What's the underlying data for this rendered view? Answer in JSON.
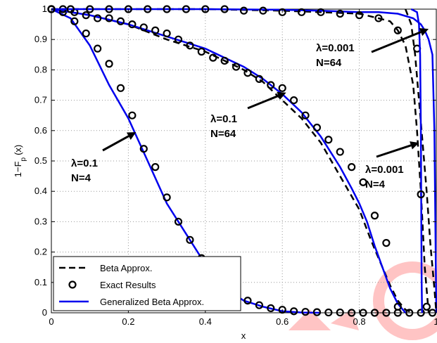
{
  "chart_data": {
    "type": "line",
    "xlabel": "x",
    "ylabel": "1−F",
    "ylabel_sub": "p",
    "ylabel_suffix": "(x)",
    "xlim": [
      0,
      1
    ],
    "ylim": [
      0,
      1
    ],
    "xticks": [
      0,
      0.2,
      0.4,
      0.6,
      0.8,
      1
    ],
    "xtick_labels": [
      "0",
      "0.2",
      "0.4",
      "0.6",
      "0.8",
      "1"
    ],
    "yticks": [
      0,
      0.1,
      0.2,
      0.3,
      0.4,
      0.5,
      0.6,
      0.7,
      0.8,
      0.9,
      1
    ],
    "ytick_labels": [
      "0",
      "0.1",
      "0.2",
      "0.3",
      "0.4",
      "0.5",
      "0.6",
      "0.7",
      "0.8",
      "0.9",
      "1"
    ],
    "grid": true,
    "legend_position": "bottom-left",
    "legend": [
      {
        "label": "Beta Approx.",
        "style": "dashed",
        "color": "#000000"
      },
      {
        "label": "Exact Results",
        "style": "circle",
        "color": "#000000"
      },
      {
        "label": "Generalized Beta Approx.",
        "style": "solid",
        "color": "#0000ee"
      }
    ],
    "annotations": [
      {
        "line1": "λ=0.001",
        "line2": "N=64",
        "arrow_to": [
          0.98,
          0.935
        ]
      },
      {
        "line1": "λ=0.1",
        "line2": "N=64",
        "arrow_to": [
          0.61,
          0.725
        ]
      },
      {
        "line1": "λ=0.1",
        "line2": "N=4",
        "arrow_to": [
          0.22,
          0.595
        ]
      },
      {
        "line1": "λ=0.001",
        "line2": "N=4",
        "arrow_to": [
          0.955,
          0.56
        ]
      }
    ],
    "series": [
      {
        "curve": "λ=0.1, N=4",
        "kind": "generalized_beta",
        "x": [
          0,
          0.05,
          0.1,
          0.15,
          0.2,
          0.25,
          0.3,
          0.35,
          0.4,
          0.45,
          0.5,
          0.55,
          0.6,
          0.65,
          0.7
        ],
        "y": [
          1,
          0.97,
          0.88,
          0.75,
          0.64,
          0.5,
          0.36,
          0.26,
          0.16,
          0.08,
          0.04,
          0.02,
          0.005,
          0.001,
          0
        ]
      },
      {
        "curve": "λ=0.1, N=4",
        "kind": "exact",
        "x": [
          0,
          0.03,
          0.06,
          0.09,
          0.12,
          0.15,
          0.18,
          0.21,
          0.24,
          0.27,
          0.3,
          0.33,
          0.36,
          0.39,
          0.42,
          0.45,
          0.48,
          0.51,
          0.54,
          0.57,
          0.6,
          0.63,
          0.66,
          0.69,
          0.72,
          0.75,
          0.78,
          0.81,
          0.84,
          0.87,
          0.9,
          0.93,
          0.96,
          0.99
        ],
        "y": [
          1,
          0.99,
          0.96,
          0.92,
          0.87,
          0.82,
          0.74,
          0.65,
          0.54,
          0.48,
          0.38,
          0.3,
          0.24,
          0.18,
          0.13,
          0.09,
          0.06,
          0.04,
          0.025,
          0.015,
          0.01,
          0.005,
          0.003,
          0.002,
          0.001,
          0.001,
          0,
          0,
          0,
          0,
          0,
          0,
          0,
          0
        ]
      },
      {
        "curve": "λ=0.1, N=64",
        "kind": "beta",
        "x": [
          0,
          0.1,
          0.2,
          0.3,
          0.4,
          0.5,
          0.55,
          0.6,
          0.65,
          0.7,
          0.75,
          0.8,
          0.83,
          0.86,
          0.88,
          0.9,
          0.92,
          0.94
        ],
        "y": [
          1,
          0.98,
          0.95,
          0.9,
          0.86,
          0.8,
          0.76,
          0.7,
          0.64,
          0.56,
          0.45,
          0.34,
          0.24,
          0.15,
          0.09,
          0.04,
          0.01,
          0
        ]
      },
      {
        "curve": "λ=0.1, N=64",
        "kind": "generalized_beta",
        "x": [
          0,
          0.1,
          0.2,
          0.3,
          0.4,
          0.5,
          0.55,
          0.6,
          0.65,
          0.7,
          0.75,
          0.78,
          0.8,
          0.82,
          0.84,
          0.86,
          0.88,
          0.9,
          0.92
        ],
        "y": [
          1,
          0.98,
          0.95,
          0.91,
          0.87,
          0.81,
          0.77,
          0.72,
          0.66,
          0.58,
          0.48,
          0.41,
          0.36,
          0.3,
          0.22,
          0.15,
          0.08,
          0.03,
          0
        ]
      },
      {
        "curve": "λ=0.1, N=64",
        "kind": "exact",
        "x": [
          0,
          0.03,
          0.06,
          0.09,
          0.12,
          0.15,
          0.18,
          0.21,
          0.24,
          0.27,
          0.3,
          0.33,
          0.36,
          0.39,
          0.42,
          0.45,
          0.48,
          0.51,
          0.54,
          0.57,
          0.6,
          0.63,
          0.66,
          0.69,
          0.72,
          0.75,
          0.78,
          0.81,
          0.84,
          0.87,
          0.9
        ],
        "y": [
          1,
          1,
          0.99,
          0.98,
          0.97,
          0.97,
          0.96,
          0.95,
          0.94,
          0.93,
          0.92,
          0.9,
          0.88,
          0.86,
          0.84,
          0.83,
          0.81,
          0.79,
          0.77,
          0.75,
          0.74,
          0.7,
          0.65,
          0.61,
          0.57,
          0.53,
          0.48,
          0.43,
          0.32,
          0.23,
          0.02
        ]
      },
      {
        "curve": "λ=0.001, N=64",
        "kind": "beta",
        "x": [
          0,
          0.2,
          0.4,
          0.6,
          0.7,
          0.8,
          0.85,
          0.88,
          0.9,
          0.92,
          0.94,
          0.95,
          0.96,
          0.97,
          0.98
        ],
        "y": [
          1,
          1,
          1,
          0.995,
          0.99,
          0.985,
          0.97,
          0.96,
          0.93,
          0.88,
          0.75,
          0.6,
          0.4,
          0.15,
          0
        ]
      },
      {
        "curve": "λ=0.001, N=64",
        "kind": "generalized_beta",
        "x": [
          0,
          0.2,
          0.4,
          0.6,
          0.7,
          0.8,
          0.85,
          0.9,
          0.94,
          0.96,
          0.97,
          0.98,
          0.99,
          0.995,
          1
        ],
        "y": [
          1,
          1,
          1,
          0.998,
          0.995,
          0.99,
          0.99,
          0.985,
          0.97,
          0.95,
          0.93,
          0.9,
          0.85,
          0.6,
          0
        ]
      },
      {
        "curve": "λ=0.001, N=64",
        "kind": "exact",
        "x": [
          0,
          0.05,
          0.1,
          0.15,
          0.2,
          0.25,
          0.3,
          0.35,
          0.4,
          0.45,
          0.5,
          0.55,
          0.6,
          0.65,
          0.7,
          0.75,
          0.8,
          0.85,
          0.9,
          0.95
        ],
        "y": [
          1,
          1,
          1,
          1,
          1,
          1,
          1,
          1,
          1,
          1,
          0.995,
          0.995,
          0.99,
          0.99,
          0.99,
          0.985,
          0.98,
          0.97,
          0.93,
          0.87
        ]
      },
      {
        "curve": "λ=0.001, N=4",
        "kind": "beta",
        "x": [
          0.92,
          0.935,
          0.945,
          0.955,
          0.965,
          0.975,
          0.985,
          0.995,
          1
        ],
        "y": [
          1,
          0.95,
          0.85,
          0.7,
          0.55,
          0.4,
          0.22,
          0.08,
          0
        ]
      },
      {
        "curve": "λ=0.001, N=4",
        "kind": "generalized_beta",
        "x": [
          0.935,
          0.95,
          0.955,
          0.958,
          0.96,
          0.961,
          0.962,
          0.963
        ],
        "y": [
          1,
          0.99,
          0.95,
          0.85,
          0.6,
          0.3,
          0.1,
          0
        ]
      },
      {
        "curve": "λ=0.001, N=4",
        "kind": "exact",
        "x": [
          0.96,
          0.975
        ],
        "y": [
          0.39,
          0.02
        ]
      }
    ]
  }
}
